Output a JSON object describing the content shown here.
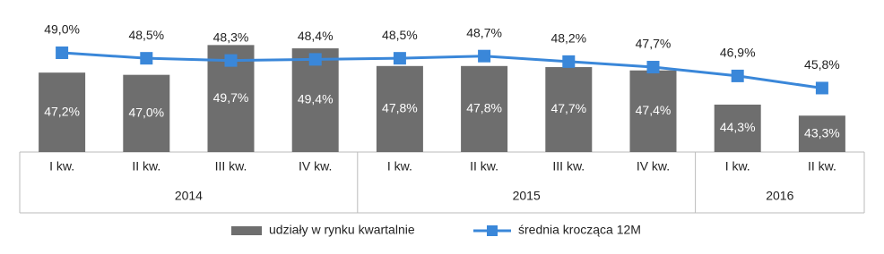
{
  "chart_data": {
    "type": "bar_line",
    "groups": [
      {
        "name": "2014",
        "categories": [
          "I kw.",
          "II kw.",
          "III kw.",
          "IV kw."
        ]
      },
      {
        "name": "2015",
        "categories": [
          "I kw.",
          "II kw.",
          "III kw.",
          "IV kw."
        ]
      },
      {
        "name": "2016",
        "categories": [
          "I kw.",
          "II kw."
        ]
      }
    ],
    "series": [
      {
        "name": "udziały w rynku kwartalnie",
        "type": "bar",
        "color": "#6e6e6e",
        "values": [
          47.2,
          47.0,
          49.7,
          49.4,
          47.8,
          47.8,
          47.7,
          47.4,
          44.3,
          43.3
        ],
        "value_labels": [
          "47,2%",
          "47,0%",
          "49,7%",
          "49,4%",
          "47,8%",
          "47,8%",
          "47,7%",
          "47,4%",
          "44,3%",
          "43,3%"
        ]
      },
      {
        "name": "średnia krocząca 12M",
        "type": "line",
        "color": "#3a87d9",
        "values": [
          49.0,
          48.5,
          48.3,
          48.4,
          48.5,
          48.7,
          48.2,
          47.7,
          46.9,
          45.8
        ],
        "value_labels": [
          "49,0%",
          "48,5%",
          "48,3%",
          "48,4%",
          "48,5%",
          "48,7%",
          "48,2%",
          "47,7%",
          "46,9%",
          "45,8%"
        ]
      }
    ],
    "ylim": [
      40,
      52
    ],
    "legend": "bottom"
  }
}
